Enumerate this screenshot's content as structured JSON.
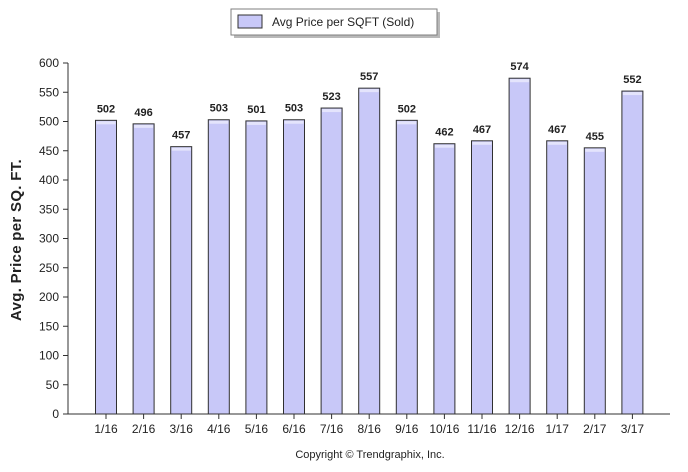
{
  "chart_data": {
    "type": "bar",
    "categories": [
      "1/16",
      "2/16",
      "3/16",
      "4/16",
      "5/16",
      "6/16",
      "7/16",
      "8/16",
      "9/16",
      "10/16",
      "11/16",
      "12/16",
      "1/17",
      "2/17",
      "3/17"
    ],
    "series": [
      {
        "name": "Avg Price per SQFT (Sold)",
        "values": [
          502,
          496,
          457,
          503,
          501,
          503,
          523,
          557,
          502,
          462,
          467,
          574,
          467,
          455,
          552
        ]
      }
    ],
    "ylabel": "Avg. Price per SQ. FT.",
    "xlabel": "",
    "ylim": [
      0,
      600
    ],
    "yticks": [
      0,
      50,
      100,
      150,
      200,
      250,
      300,
      350,
      400,
      450,
      500,
      550,
      600
    ],
    "legend_position": "top-center",
    "grid": false,
    "colors": {
      "bar_fill": "#c8c8f8",
      "bar_stroke": "#303030"
    }
  },
  "footer": {
    "copyright": "Copyright © Trendgraphix, Inc."
  }
}
